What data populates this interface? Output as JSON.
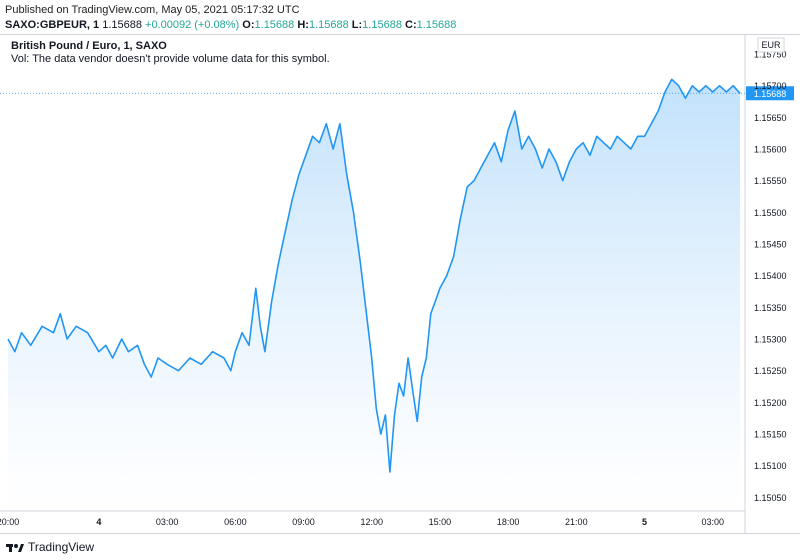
{
  "header": {
    "published": "Published on TradingView.com, May 05, 2021 05:17:32 UTC",
    "symbol": "SAXO:GBPEUR, 1",
    "price": "1.15688",
    "change": "+0.00092 (+0.08%)",
    "ohlc": {
      "o_label": "O:",
      "o": "1.15688",
      "h_label": "H:",
      "h": "1.15688",
      "l_label": "L:",
      "l": "1.15688",
      "c_label": "C:",
      "c": "1.15688"
    }
  },
  "pane": {
    "title": "British Pound / Euro, 1, SAXO",
    "volume_note": "Vol: The data vendor doesn't provide volume data for this symbol."
  },
  "footer": {
    "brand": "TradingView"
  },
  "colors": {
    "line": "#2196f3",
    "fill_top": "#bbdefb",
    "fill_bottom": "#ffffff",
    "price_label_bg": "#2196f3",
    "up": "#26a69a"
  },
  "chart_data": {
    "type": "area",
    "currency_label": "EUR",
    "last_price_label": "1.15688",
    "ylim": [
      1.1503,
      1.1578
    ],
    "y_ticks": [
      "1.15750",
      "1.15700",
      "1.15650",
      "1.15600",
      "1.15550",
      "1.15500",
      "1.15450",
      "1.15400",
      "1.15350",
      "1.15300",
      "1.15250",
      "1.15200",
      "1.15150",
      "1.15100",
      "1.15050"
    ],
    "x_ticks": [
      {
        "label": "20:00",
        "t": 0
      },
      {
        "label": "4",
        "t": 4
      },
      {
        "label": "03:00",
        "t": 7
      },
      {
        "label": "06:00",
        "t": 10
      },
      {
        "label": "09:00",
        "t": 13
      },
      {
        "label": "12:00",
        "t": 16
      },
      {
        "label": "15:00",
        "t": 19
      },
      {
        "label": "18:00",
        "t": 22
      },
      {
        "label": "21:00",
        "t": 25
      },
      {
        "label": "5",
        "t": 28
      },
      {
        "label": "03:00",
        "t": 31
      }
    ],
    "series": [
      {
        "points": [
          [
            0.0,
            1.153
          ],
          [
            0.3,
            1.1528
          ],
          [
            0.6,
            1.1531
          ],
          [
            1.0,
            1.1529
          ],
          [
            1.5,
            1.1532
          ],
          [
            2.0,
            1.1531
          ],
          [
            2.3,
            1.1534
          ],
          [
            2.6,
            1.153
          ],
          [
            3.0,
            1.1532
          ],
          [
            3.5,
            1.1531
          ],
          [
            4.0,
            1.1528
          ],
          [
            4.3,
            1.1529
          ],
          [
            4.6,
            1.1527
          ],
          [
            5.0,
            1.153
          ],
          [
            5.3,
            1.1528
          ],
          [
            5.7,
            1.1529
          ],
          [
            6.0,
            1.1526
          ],
          [
            6.3,
            1.1524
          ],
          [
            6.6,
            1.1527
          ],
          [
            7.0,
            1.1526
          ],
          [
            7.5,
            1.1525
          ],
          [
            8.0,
            1.1527
          ],
          [
            8.5,
            1.1526
          ],
          [
            9.0,
            1.1528
          ],
          [
            9.5,
            1.1527
          ],
          [
            9.8,
            1.1525
          ],
          [
            10.0,
            1.1528
          ],
          [
            10.3,
            1.1531
          ],
          [
            10.6,
            1.1529
          ],
          [
            10.9,
            1.1538
          ],
          [
            11.1,
            1.1532
          ],
          [
            11.3,
            1.1528
          ],
          [
            11.6,
            1.1536
          ],
          [
            11.9,
            1.1542
          ],
          [
            12.2,
            1.1547
          ],
          [
            12.5,
            1.1552
          ],
          [
            12.8,
            1.1556
          ],
          [
            13.1,
            1.1559
          ],
          [
            13.4,
            1.1562
          ],
          [
            13.7,
            1.1561
          ],
          [
            14.0,
            1.1564
          ],
          [
            14.3,
            1.156
          ],
          [
            14.6,
            1.1564
          ],
          [
            14.9,
            1.1556
          ],
          [
            15.2,
            1.155
          ],
          [
            15.5,
            1.1542
          ],
          [
            15.8,
            1.1533
          ],
          [
            16.0,
            1.1527
          ],
          [
            16.2,
            1.1519
          ],
          [
            16.4,
            1.1515
          ],
          [
            16.6,
            1.1518
          ],
          [
            16.8,
            1.1509
          ],
          [
            17.0,
            1.1518
          ],
          [
            17.2,
            1.1523
          ],
          [
            17.4,
            1.1521
          ],
          [
            17.6,
            1.1527
          ],
          [
            17.8,
            1.1522
          ],
          [
            18.0,
            1.1517
          ],
          [
            18.2,
            1.1524
          ],
          [
            18.4,
            1.1527
          ],
          [
            18.6,
            1.1534
          ],
          [
            18.8,
            1.1536
          ],
          [
            19.0,
            1.1538
          ],
          [
            19.3,
            1.154
          ],
          [
            19.6,
            1.1543
          ],
          [
            19.9,
            1.1549
          ],
          [
            20.2,
            1.1554
          ],
          [
            20.5,
            1.1555
          ],
          [
            20.8,
            1.1557
          ],
          [
            21.1,
            1.1559
          ],
          [
            21.4,
            1.1561
          ],
          [
            21.7,
            1.1558
          ],
          [
            22.0,
            1.1563
          ],
          [
            22.3,
            1.1566
          ],
          [
            22.6,
            1.156
          ],
          [
            22.9,
            1.1562
          ],
          [
            23.2,
            1.156
          ],
          [
            23.5,
            1.1557
          ],
          [
            23.8,
            1.156
          ],
          [
            24.1,
            1.1558
          ],
          [
            24.4,
            1.1555
          ],
          [
            24.7,
            1.1558
          ],
          [
            25.0,
            1.156
          ],
          [
            25.3,
            1.1561
          ],
          [
            25.6,
            1.1559
          ],
          [
            25.9,
            1.1562
          ],
          [
            26.2,
            1.1561
          ],
          [
            26.5,
            1.156
          ],
          [
            26.8,
            1.1562
          ],
          [
            27.1,
            1.1561
          ],
          [
            27.4,
            1.156
          ],
          [
            27.7,
            1.1562
          ],
          [
            28.0,
            1.1562
          ],
          [
            28.3,
            1.1564
          ],
          [
            28.6,
            1.1566
          ],
          [
            28.9,
            1.1569
          ],
          [
            29.2,
            1.1571
          ],
          [
            29.5,
            1.157
          ],
          [
            29.8,
            1.1568
          ],
          [
            30.1,
            1.157
          ],
          [
            30.4,
            1.1569
          ],
          [
            30.7,
            1.157
          ],
          [
            31.0,
            1.1569
          ],
          [
            31.3,
            1.157
          ],
          [
            31.6,
            1.1569
          ],
          [
            31.9,
            1.157
          ],
          [
            32.2,
            1.15688
          ]
        ]
      }
    ]
  }
}
